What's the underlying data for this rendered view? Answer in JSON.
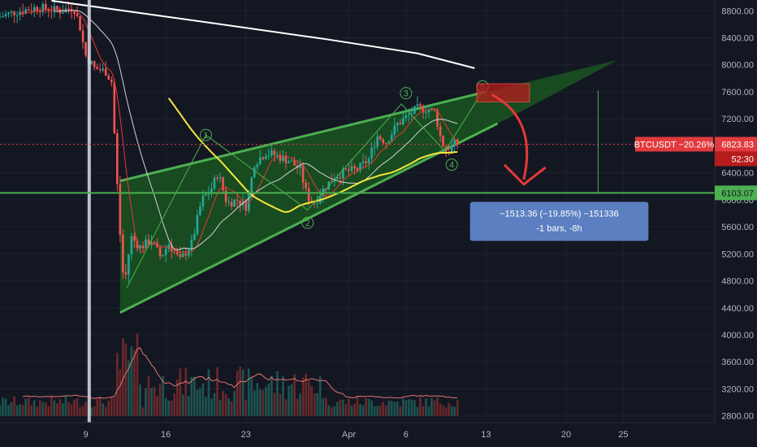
{
  "chart_data": {
    "type": "candlestick",
    "symbol": "BTCUSDT",
    "price_axis": {
      "ticks": [
        8800,
        8400,
        8000,
        7600,
        7200,
        6800,
        6400,
        6000,
        5600,
        5200,
        4800,
        4400,
        4000,
        3600,
        3200,
        2800
      ],
      "tick_labels": [
        "8800.00",
        "8400.00",
        "8000.00",
        "7600.00",
        "7200.00",
        "6800.00",
        "6400.00",
        "6000.00",
        "5600.00",
        "5200.00",
        "4800.00",
        "4400.00",
        "4000.00",
        "3600.00",
        "3200.00",
        "2800.00"
      ],
      "range": [
        2700,
        8960
      ]
    },
    "time_axis": {
      "ticks": [
        {
          "label": "9",
          "day": 9
        },
        {
          "label": "16",
          "day": 16
        },
        {
          "label": "23",
          "day": 23
        },
        {
          "label": "Apr",
          "day": 32
        },
        {
          "label": "6",
          "day": 37
        },
        {
          "label": "13",
          "day": 44
        },
        {
          "label": "20",
          "day": 51
        },
        {
          "label": "25",
          "day": 56
        }
      ],
      "range": [
        1.5,
        64
      ]
    },
    "last_price": {
      "label": "BTCUSDT −20.26%",
      "value_label": "6823.83",
      "value": 6823.83,
      "countdown": "52:30"
    },
    "level_label": {
      "value_label": "6103.07",
      "value": 6103.07
    },
    "measure": {
      "line1": "−1513.36 (−19.85%) −151336",
      "line2": "-1 bars, -8h"
    },
    "wave_labels": [
      "1",
      "2",
      "3",
      "4",
      "5"
    ],
    "wave_points": [
      {
        "day": 12.6,
        "price": 4700
      },
      {
        "day": 19.5,
        "price": 6960
      },
      {
        "day": 28.4,
        "price": 5850
      },
      {
        "day": 36.6,
        "price": 7420
      },
      {
        "day": 40.4,
        "price": 6720
      },
      {
        "day": 43.6,
        "price": 7580
      }
    ],
    "wave_label_points": [
      {
        "day": 19.5,
        "price": 6960
      },
      {
        "day": 28.4,
        "price": 5660
      },
      {
        "day": 37.0,
        "price": 7580
      },
      {
        "day": 41.0,
        "price": 6520
      },
      {
        "day": 43.7,
        "price": 7680
      }
    ],
    "channel": {
      "upper": [
        {
          "day": 12.0,
          "price": 6280
        },
        {
          "day": 55.5,
          "price": 8070
        }
      ],
      "lower": [
        {
          "day": 12.0,
          "price": 4330
        },
        {
          "day": 45.0,
          "price": 7130
        }
      ]
    },
    "vertical_line_day": 9.3,
    "colors": {
      "up": "#26a69a",
      "down": "#ef5350",
      "channel_line": "#4caf50",
      "channel_fill": "#1b5e20",
      "ma_white": "#ffffff",
      "ma_yellow": "#f5e73b",
      "ma_red": "#e53935",
      "level_line": "#4caf50",
      "measure_box": "#5b7fc0",
      "price_tag": "#e03a3e",
      "arrow": "#e53935"
    },
    "candles": [],
    "volumes": []
  }
}
